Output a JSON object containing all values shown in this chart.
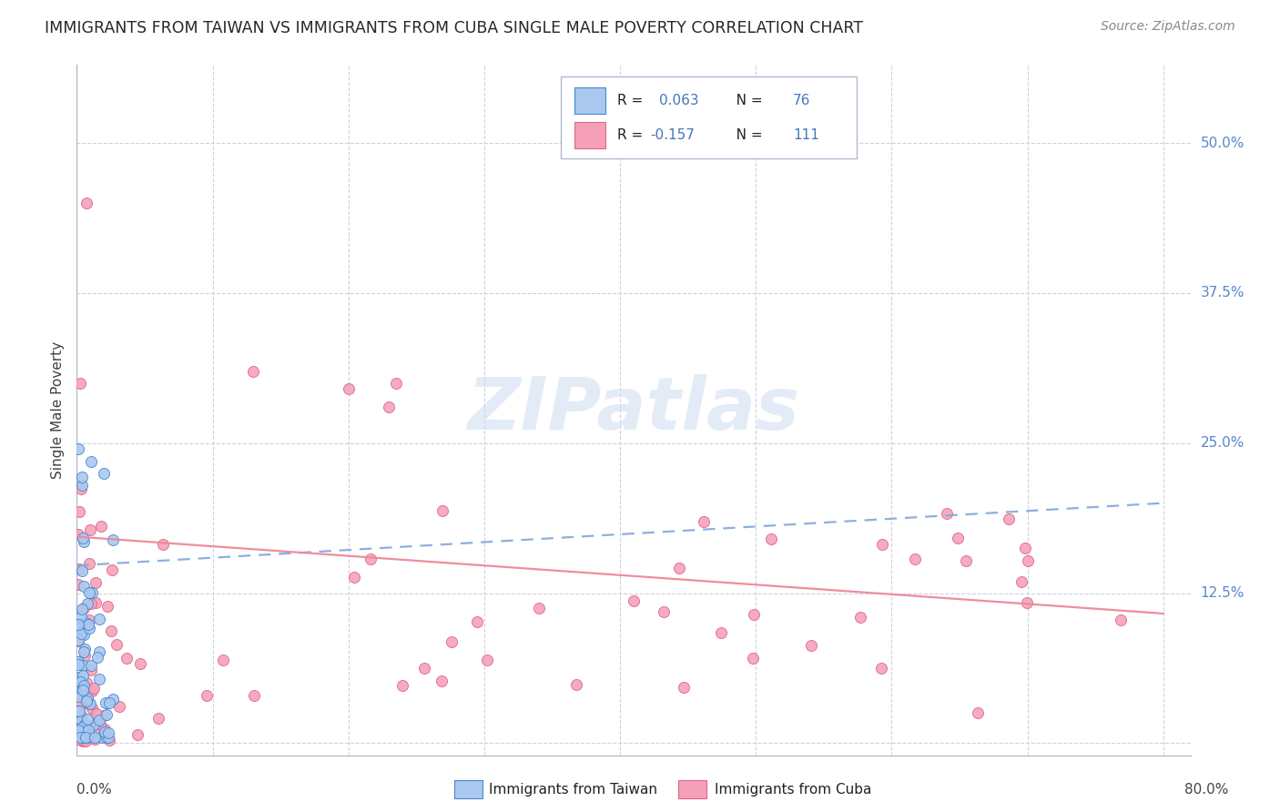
{
  "title": "IMMIGRANTS FROM TAIWAN VS IMMIGRANTS FROM CUBA SINGLE MALE POVERTY CORRELATION CHART",
  "source": "Source: ZipAtlas.com",
  "ylabel": "Single Male Poverty",
  "yticks_right": [
    "50.0%",
    "37.5%",
    "25.0%",
    "12.5%"
  ],
  "yticks_right_vals": [
    0.5,
    0.375,
    0.25,
    0.125
  ],
  "xlim": [
    0.0,
    0.82
  ],
  "ylim": [
    -0.01,
    0.565
  ],
  "taiwan_color": "#aac8f0",
  "cuba_color": "#f5a0b8",
  "taiwan_edge": "#4488cc",
  "cuba_edge": "#dd6688",
  "trend_taiwan_color": "#88aadd",
  "trend_cuba_color": "#ee8899",
  "background_color": "#ffffff",
  "grid_color": "#d0d0e0",
  "title_color": "#282828",
  "source_color": "#888888",
  "right_label_color": "#5588cc",
  "accent_blue": "#4477bb",
  "trend_taiwan_start_y": 0.148,
  "trend_taiwan_end_y": 0.2,
  "trend_cuba_start_y": 0.172,
  "trend_cuba_end_y": 0.108
}
